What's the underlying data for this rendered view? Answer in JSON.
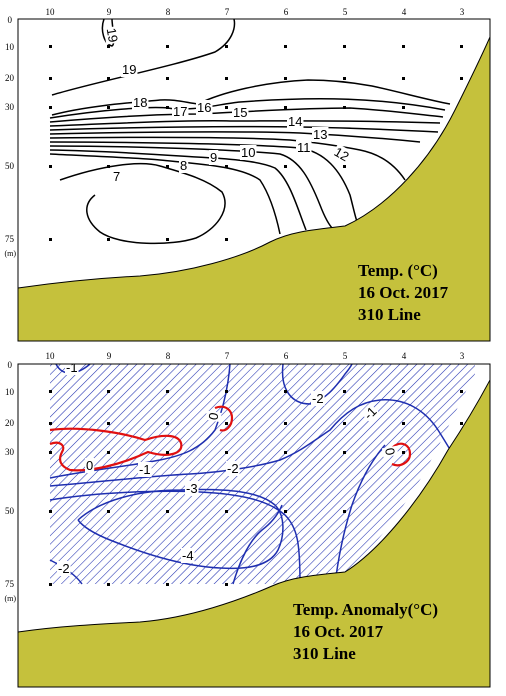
{
  "colors": {
    "land": "#c5c13c",
    "contour": "#000000",
    "anomaly_negative": "#1f2fb0",
    "anomaly_zero": "#e01010",
    "hatch": "#1f2fb0"
  },
  "chart_data": [
    {
      "type": "contour",
      "title_lines": [
        "Temp. (°C)",
        "16 Oct. 2017",
        "310 Line"
      ],
      "station_labels": [
        "10",
        "9",
        "8",
        "7",
        "6",
        "5",
        "4",
        "3"
      ],
      "depth_labels": [
        "0",
        "10",
        "20",
        "30",
        "50",
        "75"
      ],
      "depth_unit": "(m)",
      "contour_labels": [
        "19",
        "19",
        "18",
        "17",
        "16",
        "15",
        "14",
        "13",
        "12",
        "11",
        "10",
        "9",
        "8",
        "7"
      ]
    },
    {
      "type": "contour",
      "title_lines": [
        "Temp. Anomaly(°C)",
        "16 Oct. 2017",
        "310 Line"
      ],
      "station_labels": [
        "10",
        "9",
        "8",
        "7",
        "6",
        "5",
        "4",
        "3"
      ],
      "depth_labels": [
        "0",
        "10",
        "20",
        "30",
        "50",
        "75"
      ],
      "depth_unit": "(m)",
      "contour_labels": [
        "-1",
        "-2",
        "0",
        "-1",
        "0",
        "-1",
        "-2",
        "-3",
        "-4",
        "-2",
        "0"
      ]
    }
  ]
}
